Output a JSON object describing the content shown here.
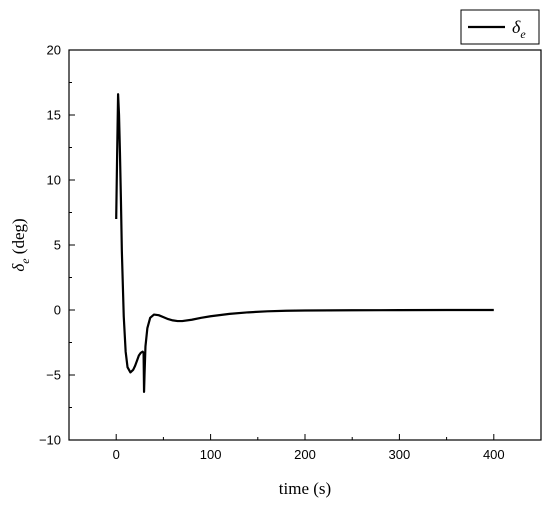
{
  "chart_data": {
    "type": "line",
    "xlabel": "time (s)",
    "ylabel_symbol": "δ",
    "ylabel_subscript": "e",
    "ylabel_unit": " (deg)",
    "xlim": [
      -50,
      450
    ],
    "ylim": [
      -10,
      20
    ],
    "x_ticks": [
      0,
      100,
      200,
      300,
      400
    ],
    "y_ticks": [
      -10,
      -5,
      0,
      5,
      10,
      15,
      20
    ],
    "x_tick_labels": [
      "0",
      "100",
      "200",
      "300",
      "400"
    ],
    "y_tick_labels": [
      "−10",
      "−5",
      "0",
      "5",
      "10",
      "15",
      "20"
    ],
    "grid": false,
    "legend_position": "top-right",
    "legend_symbol": "δ",
    "legend_subscript": "e",
    "series": [
      {
        "color": "#000000",
        "x": [
          0,
          1,
          2,
          3,
          4,
          5,
          6,
          8,
          10,
          12,
          15,
          18,
          20,
          22,
          24,
          26,
          28,
          29,
          29.5,
          30,
          31,
          33,
          36,
          40,
          45,
          50,
          55,
          60,
          65,
          70,
          80,
          90,
          100,
          120,
          140,
          160,
          180,
          200,
          250,
          300,
          350,
          400
        ],
        "y": [
          7,
          12,
          16.6,
          15,
          12,
          8.5,
          4.5,
          -0.5,
          -3.2,
          -4.4,
          -4.8,
          -4.6,
          -4.3,
          -3.9,
          -3.5,
          -3.3,
          -3.2,
          -3.3,
          -6.3,
          -5.0,
          -2.8,
          -1.4,
          -0.6,
          -0.35,
          -0.4,
          -0.55,
          -0.7,
          -0.8,
          -0.85,
          -0.85,
          -0.75,
          -0.6,
          -0.48,
          -0.3,
          -0.18,
          -0.1,
          -0.06,
          -0.04,
          -0.02,
          -0.01,
          0,
          0
        ]
      }
    ]
  }
}
